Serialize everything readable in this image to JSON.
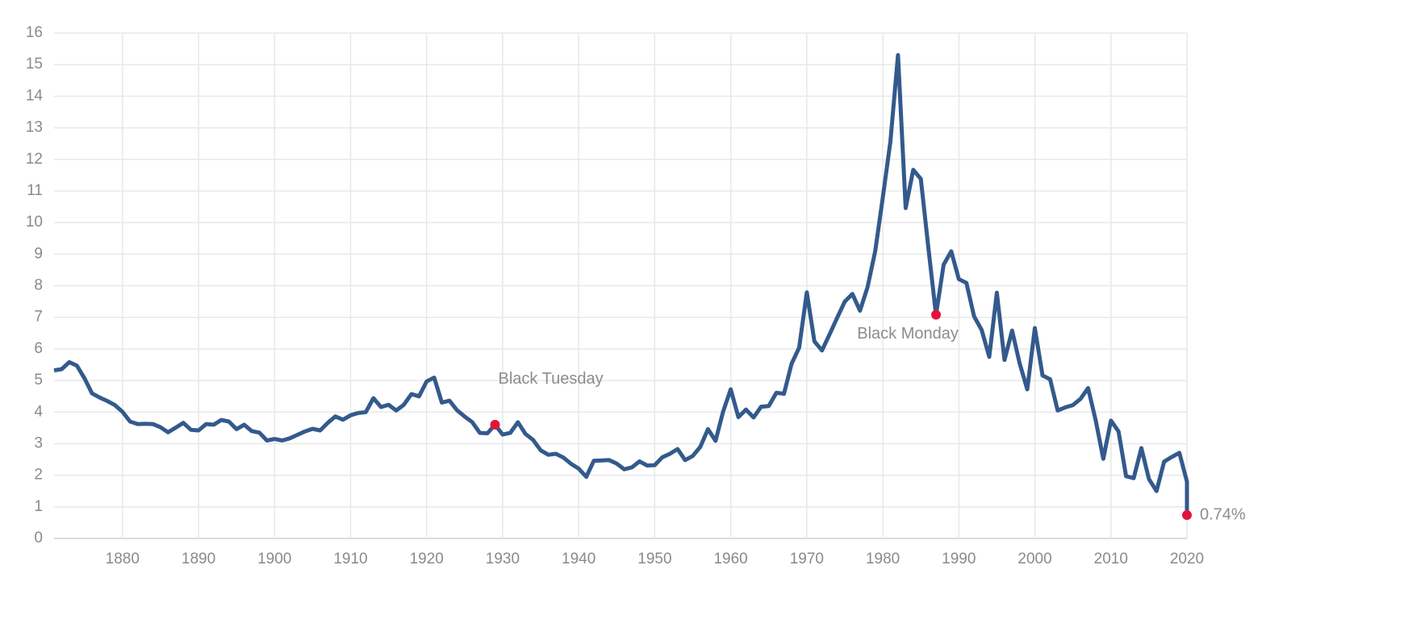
{
  "chart_data": {
    "type": "line",
    "color": "#335a8c",
    "marker_color": "#e3143b",
    "grid": true,
    "xlim": [
      1871,
      2020
    ],
    "xticks": [
      1880,
      1890,
      1900,
      1910,
      1920,
      1930,
      1940,
      1950,
      1960,
      1970,
      1980,
      1990,
      2000,
      2010,
      2020
    ],
    "ylim": [
      0,
      16
    ],
    "yticks": [
      0,
      1,
      2,
      3,
      4,
      5,
      6,
      7,
      8,
      9,
      10,
      11,
      12,
      13,
      14,
      15,
      16
    ],
    "x": [
      1871,
      1872,
      1873,
      1874,
      1875,
      1876,
      1877,
      1878,
      1879,
      1880,
      1881,
      1882,
      1883,
      1884,
      1885,
      1886,
      1887,
      1888,
      1889,
      1890,
      1891,
      1892,
      1893,
      1894,
      1895,
      1896,
      1897,
      1898,
      1899,
      1900,
      1901,
      1902,
      1903,
      1904,
      1905,
      1906,
      1907,
      1908,
      1909,
      1910,
      1911,
      1912,
      1913,
      1914,
      1915,
      1916,
      1917,
      1918,
      1919,
      1920,
      1921,
      1922,
      1923,
      1924,
      1925,
      1926,
      1927,
      1928,
      1929,
      1930,
      1931,
      1932,
      1933,
      1934,
      1935,
      1936,
      1937,
      1938,
      1939,
      1940,
      1941,
      1942,
      1943,
      1944,
      1945,
      1946,
      1947,
      1948,
      1949,
      1950,
      1951,
      1952,
      1953,
      1954,
      1955,
      1956,
      1957,
      1958,
      1959,
      1960,
      1961,
      1962,
      1963,
      1964,
      1965,
      1966,
      1967,
      1968,
      1969,
      1970,
      1971,
      1972,
      1973,
      1974,
      1975,
      1976,
      1977,
      1978,
      1979,
      1980,
      1981,
      1982,
      1983,
      1984,
      1985,
      1986,
      1987,
      1988,
      1989,
      1990,
      1991,
      1992,
      1993,
      1994,
      1995,
      1996,
      1997,
      1998,
      1999,
      2000,
      2001,
      2002,
      2003,
      2004,
      2005,
      2006,
      2007,
      2008,
      2009,
      2010,
      2011,
      2012,
      2013,
      2014,
      2015,
      2016,
      2017,
      2018,
      2019,
      2020,
      2020
    ],
    "values": [
      5.32,
      5.36,
      5.58,
      5.47,
      5.07,
      4.59,
      4.46,
      4.35,
      4.22,
      4.01,
      3.7,
      3.62,
      3.63,
      3.62,
      3.52,
      3.36,
      3.51,
      3.66,
      3.44,
      3.42,
      3.62,
      3.6,
      3.75,
      3.7,
      3.46,
      3.6,
      3.4,
      3.35,
      3.1,
      3.15,
      3.1,
      3.17,
      3.28,
      3.39,
      3.47,
      3.42,
      3.66,
      3.86,
      3.76,
      3.9,
      3.97,
      4.0,
      4.44,
      4.16,
      4.23,
      4.05,
      4.23,
      4.57,
      4.5,
      4.97,
      5.09,
      4.3,
      4.36,
      4.06,
      3.86,
      3.68,
      3.34,
      3.33,
      3.6,
      3.29,
      3.34,
      3.68,
      3.31,
      3.12,
      2.79,
      2.65,
      2.68,
      2.56,
      2.36,
      2.21,
      1.95,
      2.46,
      2.47,
      2.48,
      2.37,
      2.19,
      2.25,
      2.44,
      2.31,
      2.32,
      2.57,
      2.68,
      2.83,
      2.48,
      2.61,
      2.9,
      3.46,
      3.09,
      4.02,
      4.72,
      3.84,
      4.08,
      3.83,
      4.17,
      4.19,
      4.61,
      4.58,
      5.53,
      6.04,
      7.79,
      6.24,
      5.95,
      6.46,
      6.99,
      7.5,
      7.74,
      7.21,
      7.96,
      9.1,
      10.8,
      12.57,
      15.3,
      10.46,
      11.67,
      11.38,
      9.19,
      7.08,
      8.67,
      9.09,
      8.21,
      8.09,
      7.03,
      6.6,
      5.75,
      7.78,
      5.65,
      6.58,
      5.54,
      4.72,
      6.66,
      5.16,
      5.04,
      4.05,
      4.15,
      4.22,
      4.42,
      4.76,
      3.74,
      2.52,
      3.73,
      3.39,
      1.97,
      1.91,
      2.86,
      1.88,
      1.5,
      2.43,
      2.58,
      2.71,
      1.8,
      0.74
    ],
    "annotations": [
      {
        "label": "Black Tuesday",
        "x": 1929,
        "y": 3.6
      },
      {
        "label": "Black Monday",
        "x": 1987,
        "y": 7.08
      },
      {
        "label": "0.74%",
        "x": 2020,
        "y": 0.74
      }
    ]
  }
}
